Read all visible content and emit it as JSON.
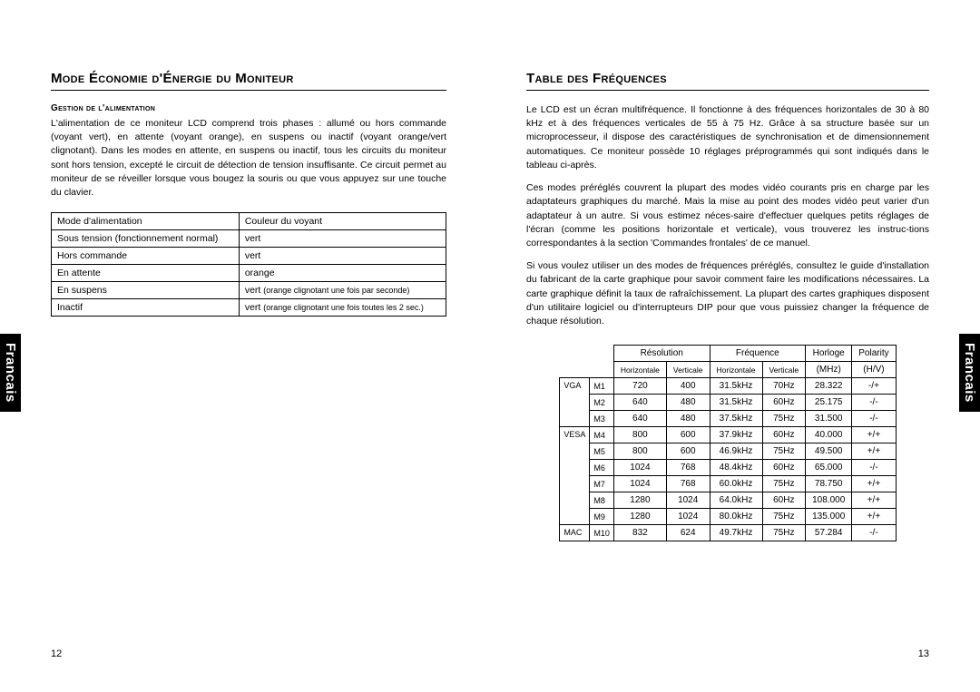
{
  "sidebar_label": "Francais",
  "page_left_num": "12",
  "page_right_num": "13",
  "left": {
    "title": "Mode Économie d'Énergie du Moniteur",
    "subsection": "Gestion de l'alimentation",
    "para1": "L'alimentation de ce moniteur LCD comprend trois phases : allumé ou hors commande (voyant vert), en attente (voyant orange), en suspens ou inactif (voyant orange/vert clignotant). Dans les modes en attente, en suspens ou inactif, tous les circuits du moniteur sont hors tension, excepté le circuit de détection de tension insuffisante. Ce circuit permet au moniteur de se réveiller lorsque vous bougez la souris ou que vous appuyez sur une touche du clavier.",
    "power_table": {
      "header": [
        "Mode d'alimentation",
        "Couleur du voyant"
      ],
      "rows": [
        [
          "Sous tension (fonctionnement normal)",
          "vert"
        ],
        [
          "Hors commande",
          "vert"
        ],
        [
          "En attente",
          "orange"
        ],
        [
          "En suspens",
          {
            "main": "vert ",
            "note": "(orange clignotant une fois par seconde)"
          }
        ],
        [
          "Inactif",
          {
            "main": "vert  ",
            "note": "(orange clignotant une fois toutes les 2 sec.)"
          }
        ]
      ]
    }
  },
  "right": {
    "title": "Table des Fréquences",
    "para1": "Le LCD est un écran multifréquence. Il fonctionne à des fréquences horizontales de 30 à 80 kHz et à des fréquences verticales de 55 à 75 Hz. Grâce à sa structure basée sur un microprocesseur, il dispose des caractéristiques de synchronisation et de dimensionnement automatiques. Ce moniteur possède 10 réglages préprogrammés qui sont indiqués dans le tableau ci-après.",
    "para2": "Ces modes préréglés couvrent la plupart des modes vidéo courants pris en charge par les adaptateurs graphiques du marché. Mais la mise au point des modes vidéo peut varier d'un adaptateur à un autre. Si vous estimez néces-saire d'effectuer quelques petits réglages de l'écran (comme les positions horizontale et verticale), vous trouverez les instruc-tions correspondantes à la section 'Commandes frontales' de ce manuel.",
    "para3": "Si vous voulez utiliser un des modes de fréquences préréglés, consultez le guide d'installation du fabricant de la carte graphique pour savoir comment faire les modifications nécessaires. La carte graphique définit la taux de rafraîchissement. La plupart des cartes graphiques disposent d'un utilitaire logiciel ou d'interrupteurs DIP pour que vous puissiez changer la fréquence de chaque résolution.",
    "freq_table": {
      "head_resolution": "Résolution",
      "head_frequency": "Fréquence",
      "head_clock": "Horloge",
      "head_polarity": "Polarity",
      "sub_horiz": "Horizontale",
      "sub_vert": "Verticale",
      "sub_mhz": "(MHz)",
      "sub_hv": "(H/V)",
      "groups": [
        {
          "label": "VGA",
          "rows": [
            {
              "m": "M1",
              "rh": "720",
              "rv": "400",
              "fh": "31.5kHz",
              "fv": "70Hz",
              "clk": "28.322",
              "pol": "-/+"
            },
            {
              "m": "M2",
              "rh": "640",
              "rv": "480",
              "fh": "31.5kHz",
              "fv": "60Hz",
              "clk": "25.175",
              "pol": "-/-"
            },
            {
              "m": "M3",
              "rh": "640",
              "rv": "480",
              "fh": "37.5kHz",
              "fv": "75Hz",
              "clk": "31.500",
              "pol": "-/-"
            }
          ]
        },
        {
          "label": "VESA",
          "rows": [
            {
              "m": "M4",
              "rh": "800",
              "rv": "600",
              "fh": "37.9kHz",
              "fv": "60Hz",
              "clk": "40.000",
              "pol": "+/+"
            },
            {
              "m": "M5",
              "rh": "800",
              "rv": "600",
              "fh": "46.9kHz",
              "fv": "75Hz",
              "clk": "49.500",
              "pol": "+/+"
            },
            {
              "m": "M6",
              "rh": "1024",
              "rv": "768",
              "fh": "48.4kHz",
              "fv": "60Hz",
              "clk": "65.000",
              "pol": "-/-"
            },
            {
              "m": "M7",
              "rh": "1024",
              "rv": "768",
              "fh": "60.0kHz",
              "fv": "75Hz",
              "clk": "78.750",
              "pol": "+/+"
            },
            {
              "m": "M8",
              "rh": "1280",
              "rv": "1024",
              "fh": "64.0kHz",
              "fv": "60Hz",
              "clk": "108.000",
              "pol": "+/+"
            },
            {
              "m": "M9",
              "rh": "1280",
              "rv": "1024",
              "fh": "80.0kHz",
              "fv": "75Hz",
              "clk": "135.000",
              "pol": "+/+"
            }
          ]
        },
        {
          "label": "MAC",
          "rows": [
            {
              "m": "M10",
              "rh": "832",
              "rv": "624",
              "fh": "49.7kHz",
              "fv": "75Hz",
              "clk": "57.284",
              "pol": "-/-"
            }
          ]
        }
      ]
    }
  }
}
